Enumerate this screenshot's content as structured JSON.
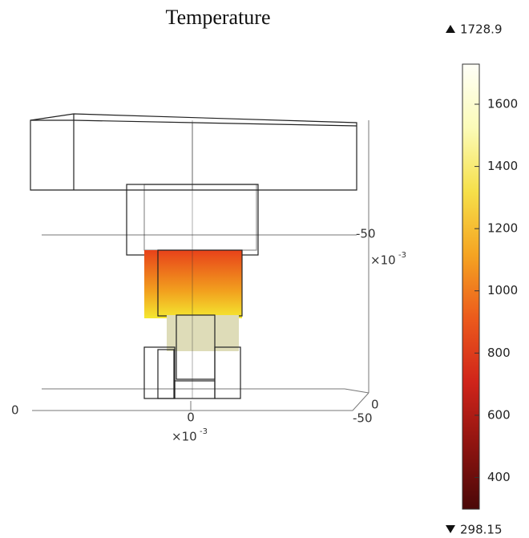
{
  "chart_data": {
    "type": "colorbar-3d",
    "title": "Temperature",
    "clim": [
      298.15,
      1728.9
    ],
    "cticks": [
      400,
      600,
      800,
      1000,
      1200,
      1400,
      1600
    ],
    "colormap": [
      "#4a0808",
      "#8e1410",
      "#d0241a",
      "#ec5a1c",
      "#f5a422",
      "#f6e04a",
      "#fbfbb8",
      "#fffff8"
    ],
    "x_axis": {
      "ticks": [
        0,
        -50
      ],
      "multiplier": "×10",
      "exponent": "-3"
    },
    "y_axis": {
      "ticks": [
        0,
        0
      ]
    },
    "z_axis": {
      "ticks": [
        -50
      ],
      "multiplier": "×10",
      "exponent": "-3"
    }
  }
}
